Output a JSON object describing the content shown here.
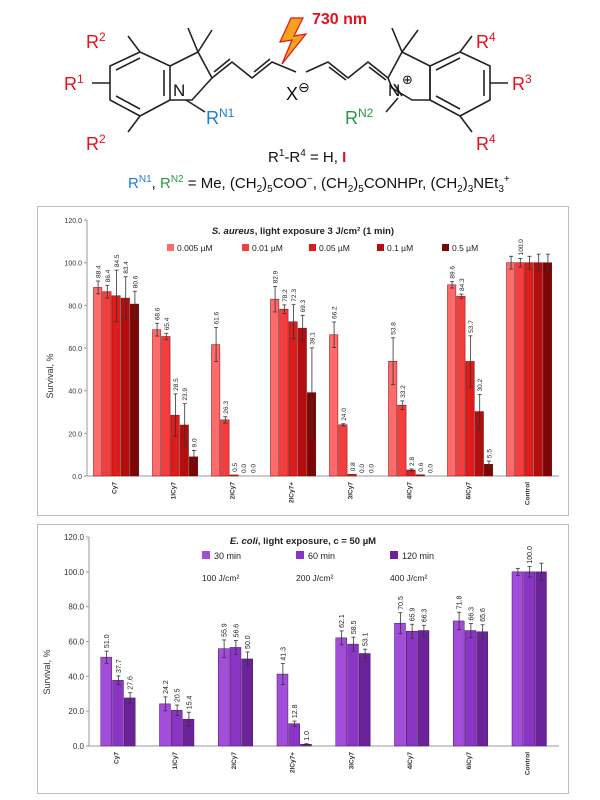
{
  "structure": {
    "labels": {
      "r2_top": "R",
      "r2_top_sup": "2",
      "r1": "R",
      "r1_sup": "1",
      "r2_bottom": "R",
      "r2_bottom_sup": "2",
      "n_left": "N",
      "rn1": "R",
      "rn1_sup": "N1",
      "counterion": "X",
      "counterion_charge": "⊖",
      "n_right": "N",
      "n_right_charge": "⊕",
      "rn2": "R",
      "rn2_sup": "N2",
      "r4_top": "R",
      "r4_top_sup": "4",
      "r3": "R",
      "r3_sup": "3",
      "r4_bottom": "R",
      "r4_bottom_sup": "4",
      "wavelength": "730 nm"
    },
    "caption_r": {
      "prefix": "R",
      "sup1": "1",
      "dash": "-R",
      "sup4": "4",
      "middle": " = H, ",
      "iodine": "I"
    },
    "caption_rn": {
      "rn1": "R",
      "rn1_sup": "N1",
      "comma": ", ",
      "rn2": "R",
      "rn2_sup": "N2",
      "text": " = Me, (CH",
      "sub_a": "2",
      "text_b": ")",
      "sub_b": "5",
      "text_c": "COO",
      "sup_c": "−",
      "text_d": ", (CH",
      "sub_d": "2",
      "text_e": ")",
      "sub_e": "5",
      "text_f": "CONHPr, (CH",
      "sub_f": "2",
      "text_g": ")",
      "sub_g": "3",
      "text_h": "NEt",
      "sub_h": "3",
      "sup_h": "+"
    }
  },
  "colors": {
    "red": "#e8101c",
    "blue": "#1a7fd4",
    "green": "#2a9a46",
    "orange_bolt": "#f5a31a",
    "s_aureus_series": [
      "#ff6b6b",
      "#f43d3d",
      "#dd1c1c",
      "#b40d0d",
      "#7c0606"
    ],
    "e_coli_series": [
      "#a34ddb",
      "#8b35c4",
      "#6c2298"
    ]
  },
  "chart_data": [
    {
      "type": "bar",
      "title_italic": "S. aureus",
      "title_rest": ", light exposure  3 J/cm² (1 min)",
      "ylabel": "Survival, %",
      "xlabel": "",
      "ylim": [
        0,
        120
      ],
      "yticks": [
        "0.0",
        "20.0",
        "40.0",
        "60.0",
        "80.0",
        "100.0",
        "120.0"
      ],
      "grid": false,
      "legend_position": "top",
      "categories": [
        "Cy7",
        "1ICy7",
        "2ICy7",
        "2ICy7+",
        "3ICy7",
        "4ICy7",
        "6ICy7",
        "Control"
      ],
      "series": [
        {
          "name": "0.005 µM",
          "values": [
            88.4,
            68.6,
            61.6,
            82.9,
            66.2,
            53.8,
            89.6,
            100.0
          ],
          "labels": [
            "88.4",
            "68.6",
            "61.6",
            "82.9",
            "66.2",
            "53.8",
            "89.6",
            ""
          ],
          "errors": [
            3,
            3,
            8,
            6,
            6,
            11,
            1.5,
            3
          ]
        },
        {
          "name": "0.01 µM",
          "values": [
            86.4,
            65.4,
            26.3,
            78.2,
            24.0,
            33.2,
            84.3,
            100.0
          ],
          "labels": [
            "86.4",
            "65.4",
            "26.3",
            "78.2",
            "24.0",
            "33.2",
            "84.3",
            "100.0"
          ],
          "errors": [
            3,
            1.5,
            1.5,
            2,
            0.5,
            2,
            1,
            2
          ]
        },
        {
          "name": "0.05 µM",
          "values": [
            84.5,
            28.5,
            0.5,
            72.3,
            0.8,
            2.8,
            53.7,
            100.0
          ],
          "labels": [
            "84.5",
            "28.5",
            "0.5",
            "72.3",
            "0.8",
            "2.8",
            "53.7",
            ""
          ],
          "errors": [
            12,
            10,
            0,
            8,
            0,
            0.5,
            12,
            3
          ]
        },
        {
          "name": "0.1 µM",
          "values": [
            83.4,
            23.9,
            0.0,
            69.3,
            0.0,
            0.6,
            30.2,
            100.0
          ],
          "labels": [
            "83.4",
            "23.9",
            "0.0",
            "69.3",
            "0.0",
            "0.6",
            "30.2",
            ""
          ],
          "errors": [
            10,
            10,
            0,
            6,
            0,
            0,
            8,
            4
          ]
        },
        {
          "name": "0.5 µM",
          "values": [
            80.6,
            9.0,
            0.0,
            39.1,
            0.0,
            0.0,
            5.5,
            100.0
          ],
          "labels": [
            "80.6",
            "9.0",
            "0.0",
            "39.1",
            "0.0",
            "0.0",
            "5.5",
            ""
          ],
          "errors": [
            6,
            3,
            0,
            21,
            0,
            0,
            1.5,
            4
          ]
        }
      ]
    },
    {
      "type": "bar",
      "title_italic": "E. coli",
      "title_rest": ", light exposure, c = 50 µM",
      "ylabel": "Survival, %",
      "xlabel": "",
      "ylim": [
        0,
        120
      ],
      "yticks": [
        "0.0",
        "20.0",
        "40.0",
        "60.0",
        "80.0",
        "100.0",
        "120.0"
      ],
      "grid": false,
      "legend_position": "top",
      "categories": [
        "Cy7",
        "1ICy7",
        "2ICy7",
        "2ICy7+",
        "3ICy7",
        "4ICy7",
        "6ICy7",
        "Control"
      ],
      "series": [
        {
          "name": "30 min",
          "dose": "100 J/cm²",
          "values": [
            51.0,
            24.2,
            55.9,
            41.3,
            62.1,
            70.5,
            71.8,
            100.0
          ],
          "labels": [
            "51.0",
            "24.2",
            "55.9",
            "41.3",
            "62.1",
            "70.5",
            "71.8",
            ""
          ],
          "errors": [
            3.5,
            4,
            5,
            6,
            4,
            6,
            5,
            2
          ]
        },
        {
          "name": "60 min",
          "dose": "200 J/cm²",
          "values": [
            37.7,
            20.5,
            56.6,
            12.8,
            58.5,
            65.9,
            66.3,
            100.0
          ],
          "labels": [
            "37.7",
            "20.5",
            "56.6",
            "12.8",
            "58.5",
            "65.9",
            "66.3",
            "100.0"
          ],
          "errors": [
            2.5,
            3,
            4,
            1.5,
            4,
            4,
            4,
            3
          ]
        },
        {
          "name": "120 min",
          "dose": "400 J/cm²",
          "values": [
            27.6,
            15.4,
            50.0,
            1.0,
            53.1,
            66.3,
            65.6,
            100.0
          ],
          "labels": [
            "27.6",
            "15.4",
            "50.0",
            "1.0",
            "53.1",
            "66.3",
            "65.6",
            ""
          ],
          "errors": [
            3,
            4,
            4,
            0.3,
            2.5,
            3,
            4,
            5
          ]
        }
      ]
    }
  ]
}
